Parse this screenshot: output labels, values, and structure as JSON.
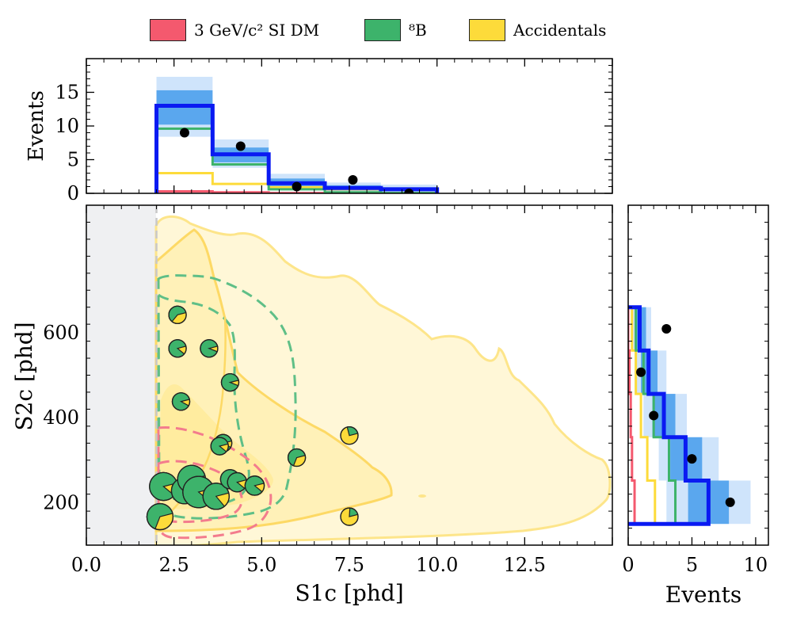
{
  "colors": {
    "dm": "#f4596e",
    "b8": "#3db36b",
    "acc": "#fddb3a",
    "total": "#0a1af2",
    "band1": "#5aa7ee",
    "band2": "#cfe4fb",
    "cutRegion": "#eff0f2",
    "accFill": "#fff6d0"
  },
  "legend": [
    {
      "key": "dm",
      "label": "3 GeV/c² SI DM"
    },
    {
      "key": "b8",
      "label": "⁸B"
    },
    {
      "key": "acc",
      "label": "Accidentals"
    }
  ],
  "chart_data": [
    {
      "id": "top",
      "type": "histogram",
      "ylabel": "Events",
      "xlim": [
        0,
        15
      ],
      "ylim": [
        0,
        20
      ],
      "yticks": [
        0,
        5,
        10,
        15
      ],
      "yticklabels": [
        "0",
        "5",
        "10",
        "15"
      ],
      "bin_edges": [
        2.0,
        3.6,
        5.2,
        6.8,
        8.4,
        10.0
      ],
      "series": [
        {
          "name": "Total",
          "values": [
            13.0,
            5.8,
            1.5,
            0.8,
            0.6
          ]
        },
        {
          "name": "8B",
          "values": [
            9.6,
            4.3,
            0.6,
            0.15,
            0.05
          ]
        },
        {
          "name": "Accidentals",
          "values": [
            3.0,
            1.4,
            0.9,
            0.6,
            0.5
          ]
        },
        {
          "name": "3 GeV/c2 SI DM",
          "values": [
            0.3,
            0.15,
            0.05,
            0.0,
            0.0
          ]
        }
      ],
      "band_1sigma": [
        [
          10.2,
          15.3
        ],
        [
          4.6,
          6.8
        ],
        [
          1.0,
          2.2
        ],
        [
          0.4,
          1.2
        ],
        [
          0.3,
          0.9
        ]
      ],
      "band_2sigma": [
        [
          8.4,
          17.3
        ],
        [
          3.8,
          8.0
        ],
        [
          0.6,
          2.9
        ],
        [
          0.2,
          1.6
        ],
        [
          0.1,
          1.3
        ]
      ],
      "data_points": {
        "x": [
          2.8,
          4.4,
          6.0,
          7.6,
          9.2
        ],
        "y": [
          9,
          7,
          1,
          2,
          0
        ]
      }
    },
    {
      "id": "main",
      "type": "scatter",
      "xlabel": "S1c [phd]",
      "ylabel": "S2c [phd]",
      "xlim": [
        0,
        15
      ],
      "ylim": [
        100,
        900
      ],
      "xticks": [
        0,
        2.5,
        5,
        7.5,
        10,
        12.5
      ],
      "xticklabels": [
        "0.0",
        "2.5",
        "5.0",
        "7.5",
        "10.0",
        "12.5"
      ],
      "yticks": [
        200,
        400,
        600
      ],
      "yticklabels": [
        "200",
        "400",
        "600"
      ],
      "analysis_threshold_s1": 2.0,
      "points": [
        {
          "s1": 2.6,
          "s2": 642,
          "size": 1.0,
          "b8_frac": 0.6
        },
        {
          "s1": 2.6,
          "s2": 563,
          "size": 1.0,
          "b8_frac": 0.85
        },
        {
          "s1": 3.5,
          "s2": 563,
          "size": 1.0,
          "b8_frac": 0.9
        },
        {
          "s1": 4.1,
          "s2": 483,
          "size": 1.0,
          "b8_frac": 0.9
        },
        {
          "s1": 2.7,
          "s2": 438,
          "size": 1.0,
          "b8_frac": 0.88
        },
        {
          "s1": 3.9,
          "s2": 340,
          "size": 1.0,
          "b8_frac": 0.88
        },
        {
          "s1": 3.8,
          "s2": 333,
          "size": 1.0,
          "b8_frac": 0.85
        },
        {
          "s1": 7.5,
          "s2": 358,
          "size": 1.0,
          "b8_frac": 0.25
        },
        {
          "s1": 6.0,
          "s2": 306,
          "size": 1.0,
          "b8_frac": 0.65
        },
        {
          "s1": 2.2,
          "s2": 238,
          "size": 1.6,
          "b8_frac": 0.85
        },
        {
          "s1": 2.8,
          "s2": 228,
          "size": 1.5,
          "b8_frac": 0.85
        },
        {
          "s1": 3.0,
          "s2": 255,
          "size": 1.6,
          "b8_frac": 0.9
        },
        {
          "s1": 3.2,
          "s2": 225,
          "size": 1.8,
          "b8_frac": 0.85
        },
        {
          "s1": 3.7,
          "s2": 215,
          "size": 1.5,
          "b8_frac": 0.82
        },
        {
          "s1": 4.1,
          "s2": 255,
          "size": 1.1,
          "b8_frac": 0.9
        },
        {
          "s1": 4.3,
          "s2": 248,
          "size": 1.1,
          "b8_frac": 0.85
        },
        {
          "s1": 4.8,
          "s2": 240,
          "size": 1.1,
          "b8_frac": 0.85
        },
        {
          "s1": 2.1,
          "s2": 167,
          "size": 1.5,
          "b8_frac": 0.65
        },
        {
          "s1": 7.5,
          "s2": 167,
          "size": 1.0,
          "b8_frac": 0.2
        }
      ]
    },
    {
      "id": "right",
      "type": "histogram_horizontal",
      "xlabel": "Events",
      "xlim": [
        0,
        11
      ],
      "xticks": [
        0,
        5,
        10
      ],
      "xticklabels": [
        "0",
        "5",
        "10"
      ],
      "ylim": [
        100,
        900
      ],
      "bin_edges": [
        150,
        252,
        354,
        456,
        558,
        660
      ],
      "series": [
        {
          "name": "Total",
          "values": [
            6.3,
            4.5,
            2.8,
            1.6,
            0.9
          ]
        },
        {
          "name": "8B",
          "values": [
            3.7,
            3.2,
            2.0,
            1.2,
            0.6
          ]
        },
        {
          "name": "Accidentals",
          "values": [
            2.1,
            1.5,
            1.0,
            0.6,
            0.3
          ]
        },
        {
          "name": "3 GeV/c2 SI DM",
          "values": [
            0.5,
            0.3,
            0.2,
            0.1,
            0.0
          ]
        }
      ],
      "band_1sigma": [
        [
          4.7,
          7.9
        ],
        [
          3.3,
          5.8
        ],
        [
          1.9,
          3.7
        ],
        [
          1.0,
          2.3
        ],
        [
          0.5,
          1.4
        ]
      ],
      "band_2sigma": [
        [
          3.0,
          9.6
        ],
        [
          2.4,
          7.1
        ],
        [
          1.2,
          4.6
        ],
        [
          0.5,
          3.0
        ],
        [
          0.2,
          1.8
        ]
      ],
      "data_points": {
        "x": [
          8,
          5,
          2,
          1,
          3
        ],
        "y": [
          201,
          303,
          405,
          507,
          609
        ]
      }
    }
  ]
}
